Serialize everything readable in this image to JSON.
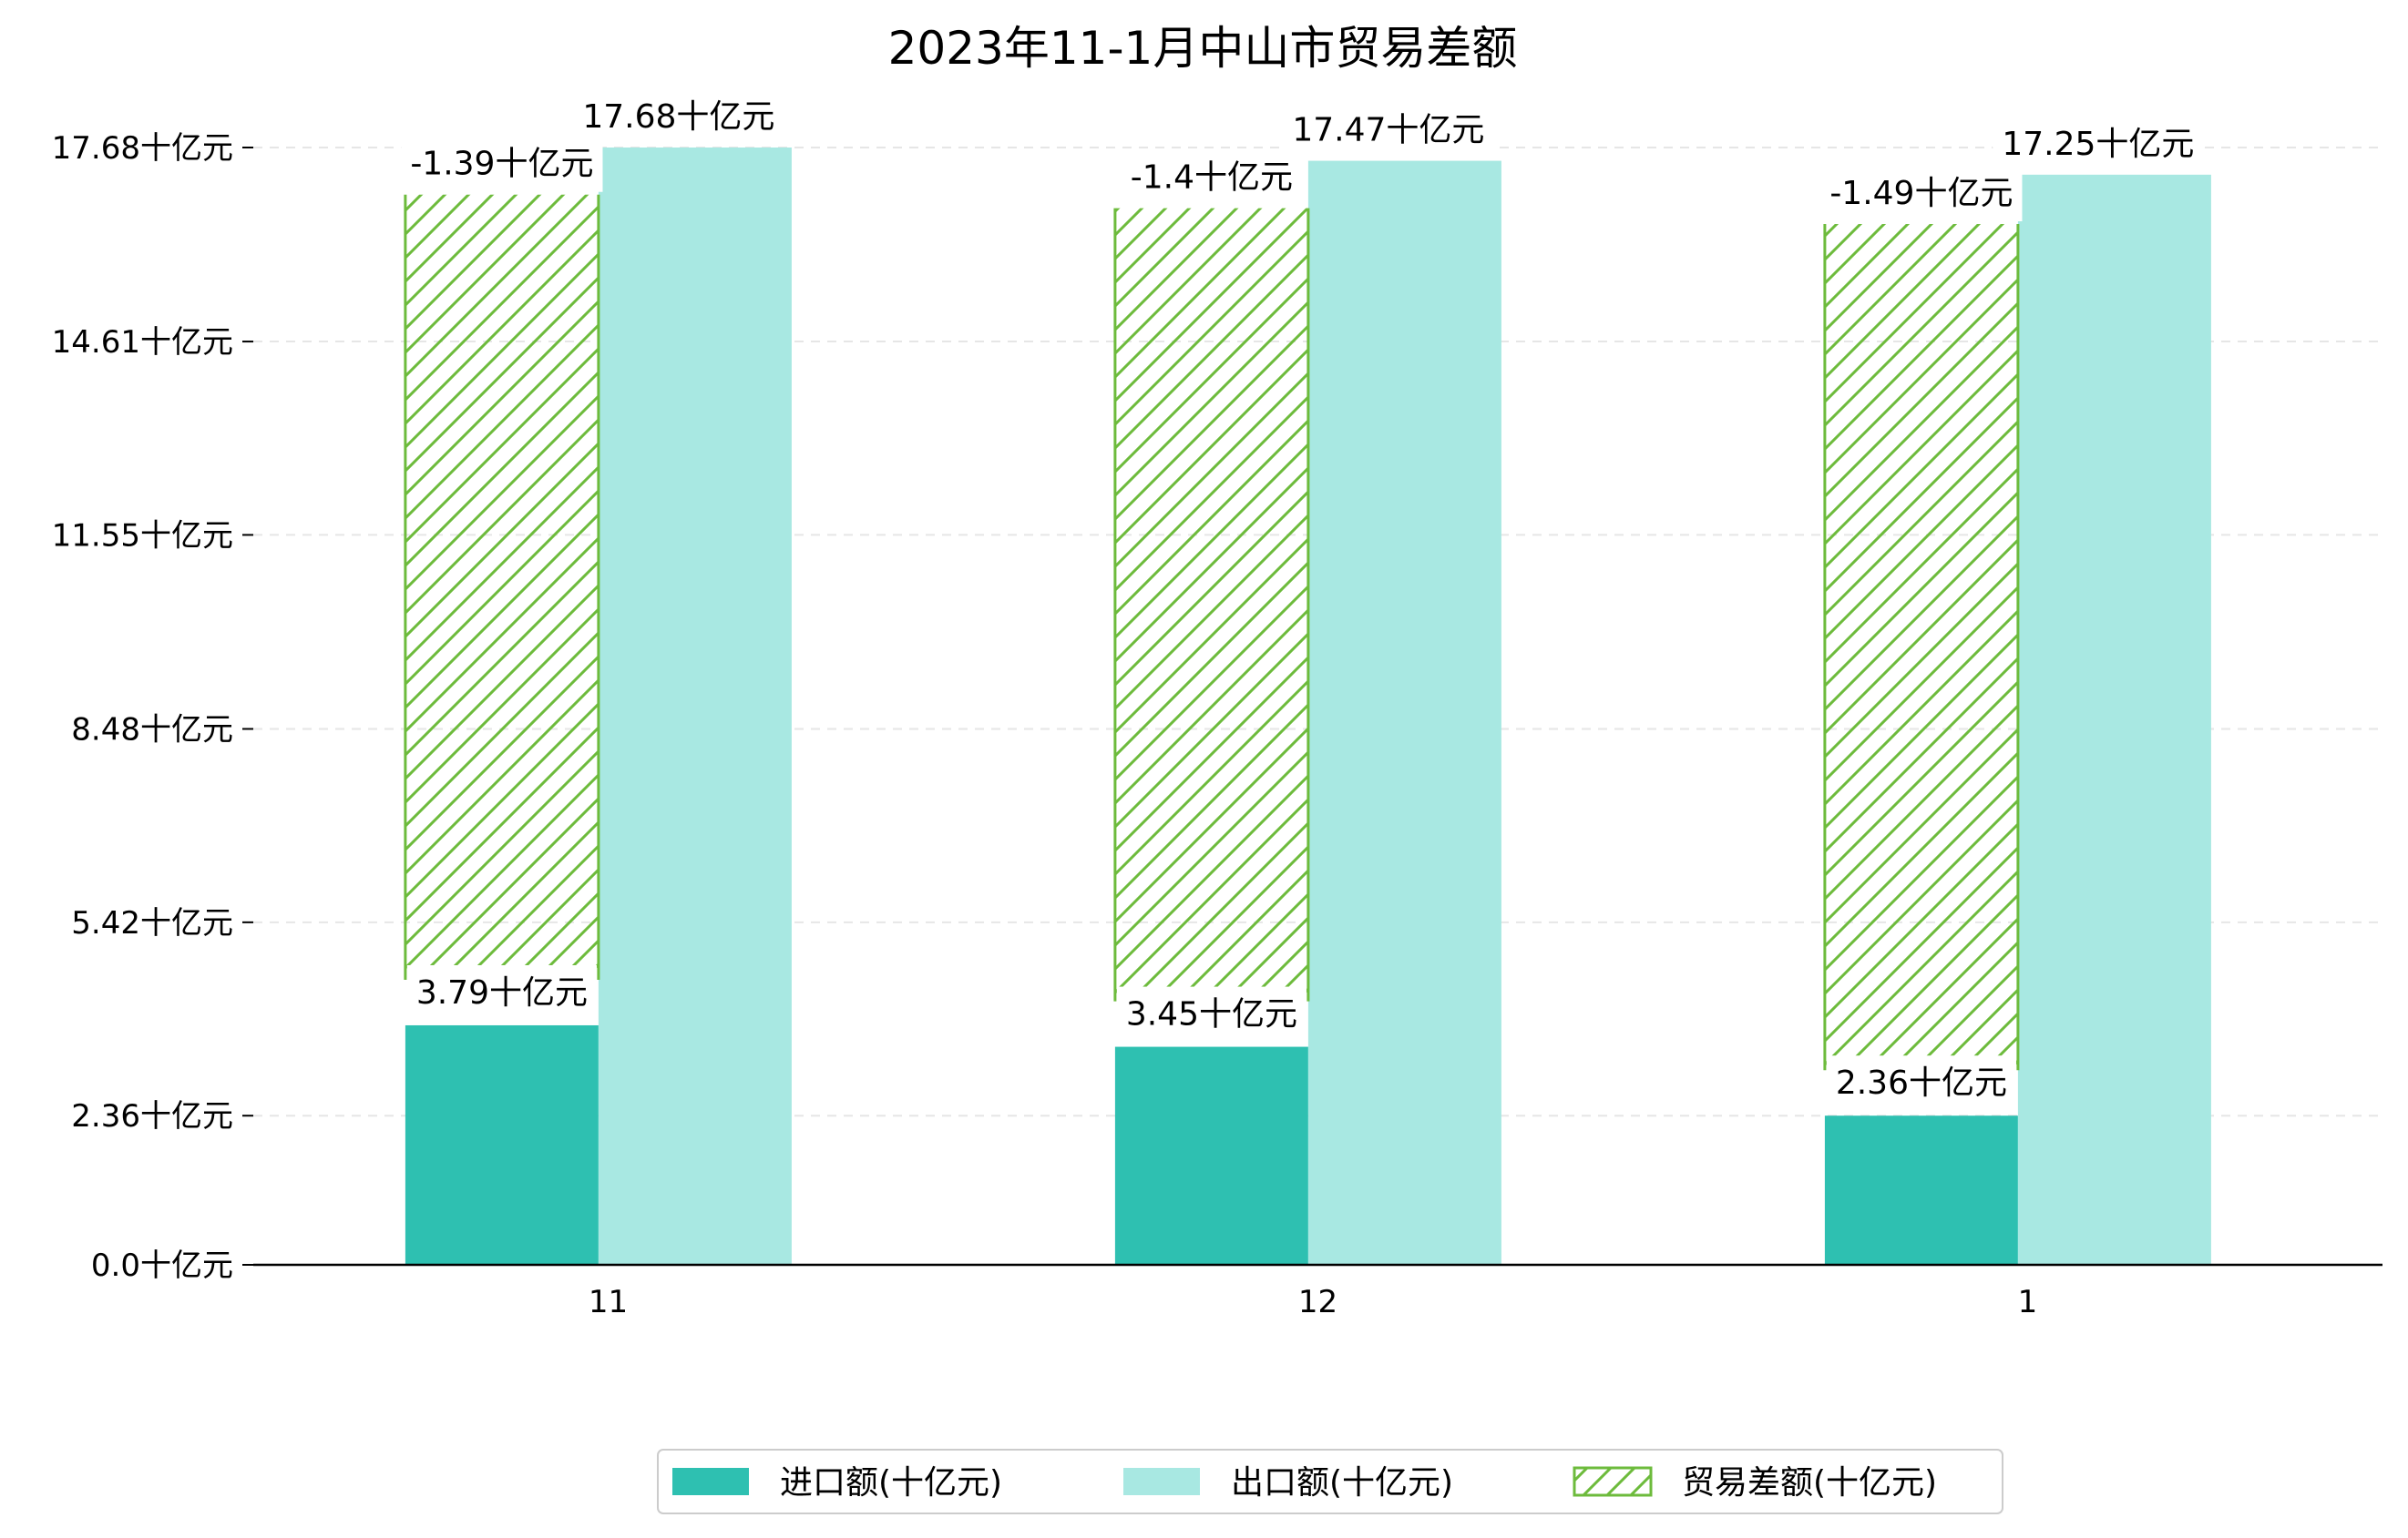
{
  "chart_data": {
    "type": "bar",
    "title": "2023年11-1月中山市贸易差额",
    "categories": [
      "11",
      "12",
      "1"
    ],
    "series": [
      {
        "name": "进口额(十亿元)",
        "values": [
          3.79,
          3.45,
          2.36
        ],
        "labels": [
          "3.79十亿元",
          "3.45十亿元",
          "2.36十亿元"
        ],
        "color": "#2ec0b1"
      },
      {
        "name": "出口额(十亿元)",
        "values": [
          17.68,
          17.47,
          17.25
        ],
        "labels": [
          "17.68十亿元",
          "17.47十亿元",
          "17.25十亿元"
        ],
        "color": "#a8e8e2"
      },
      {
        "name": "贸易差额(十亿元)",
        "values": [
          -1.39,
          -1.4,
          -1.49
        ],
        "labels": [
          "-1.39十亿元",
          "-1.4十亿元",
          "-1.49十亿元"
        ],
        "color": "#6dbb3c",
        "style": "hatched"
      }
    ],
    "y_ticks": [
      0.0,
      2.36,
      5.42,
      8.48,
      11.55,
      14.61,
      17.68
    ],
    "y_tick_labels": [
      "0.0十亿元",
      "2.36十亿元",
      "5.42十亿元",
      "8.48十亿元",
      "11.55十亿元",
      "14.61十亿元",
      "17.68十亿元"
    ],
    "ylim": [
      0,
      17.68
    ],
    "grid": true,
    "legend": "bottom-center"
  }
}
